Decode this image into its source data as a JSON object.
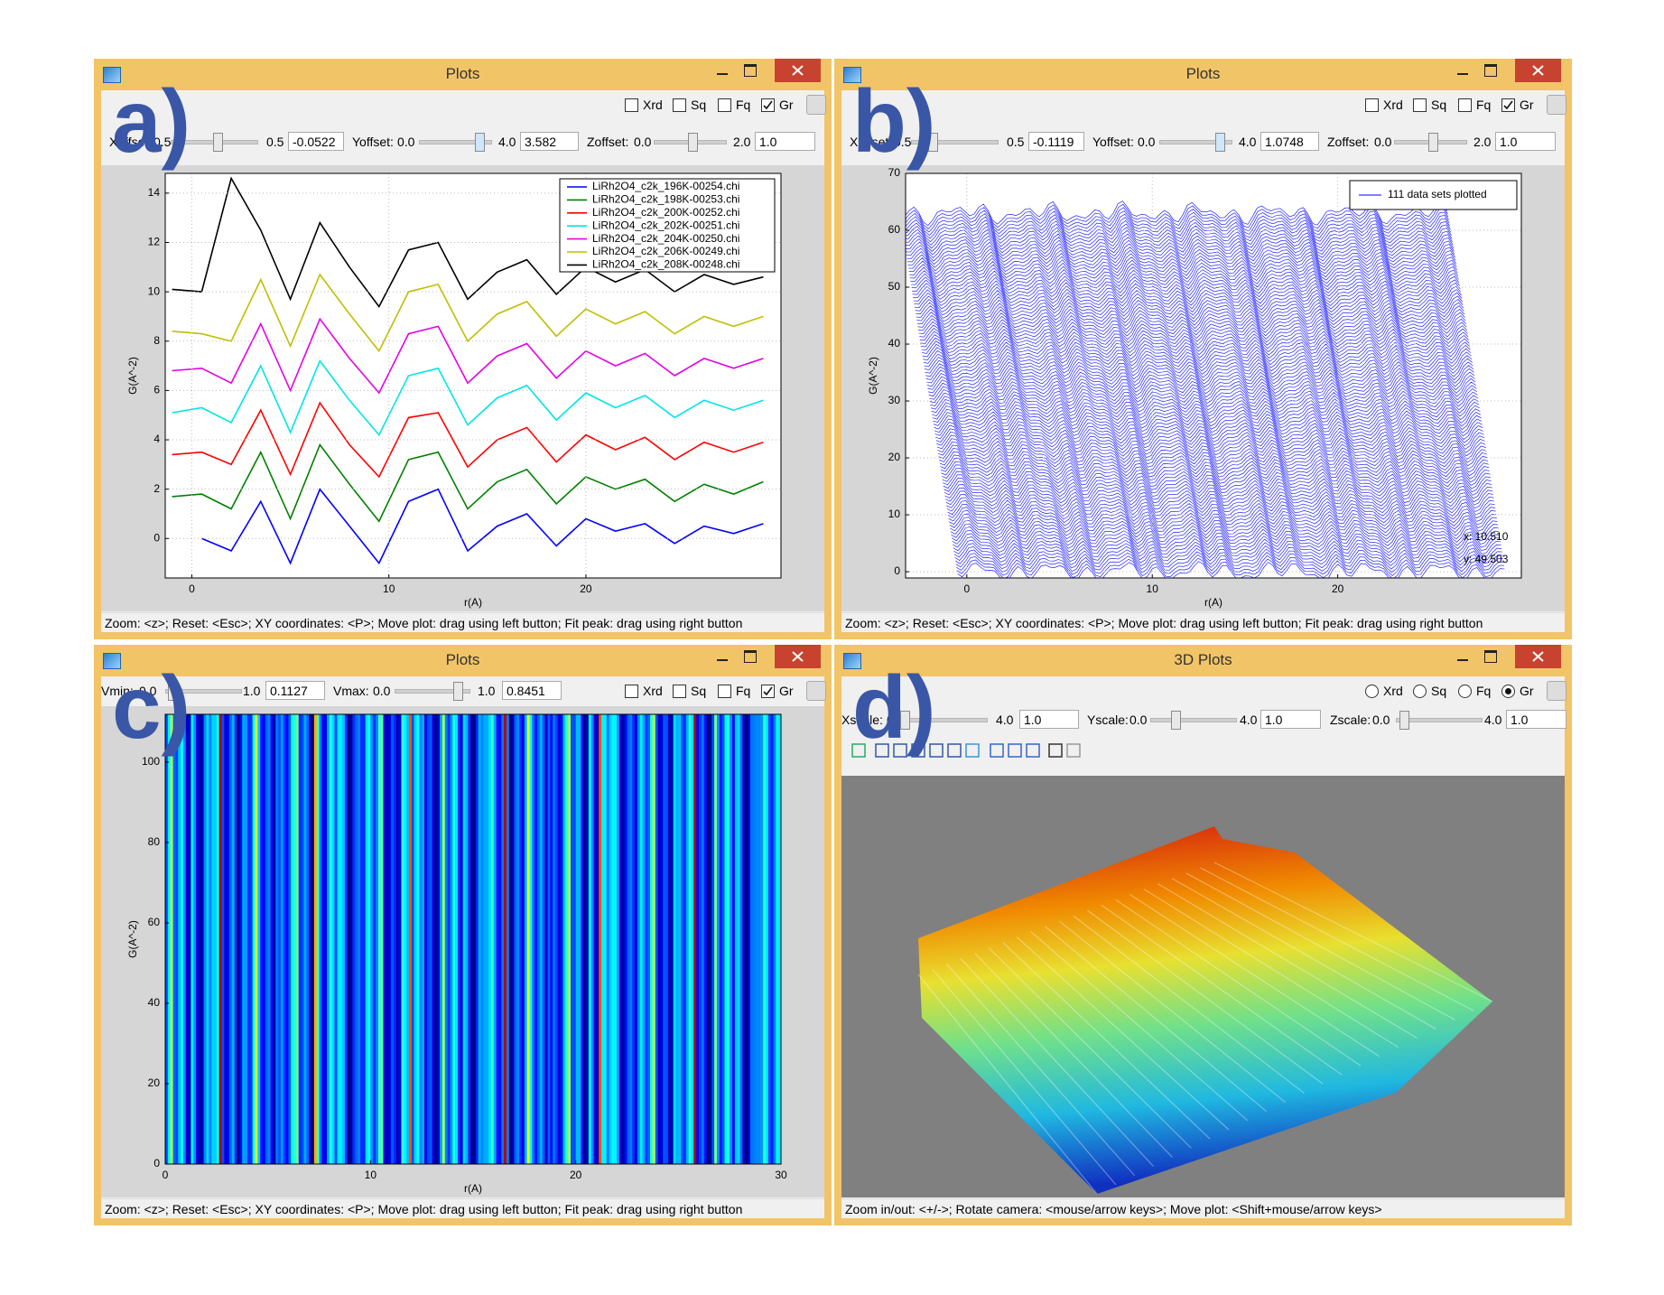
{
  "windows": [
    {
      "label": "a)",
      "title": "Plots",
      "option_style": "checkbox",
      "options": [
        {
          "label": "Xrd",
          "checked": false
        },
        {
          "label": "Sq",
          "checked": false
        },
        {
          "label": "Fq",
          "checked": false
        },
        {
          "label": "Gr",
          "checked": true
        }
      ],
      "controls": [
        {
          "name": "Xoffset:",
          "min": "0.5",
          "max": "0.5",
          "value": "-0.0522"
        },
        {
          "name": "Yoffset:",
          "min": "0.0",
          "max": "4.0",
          "value": "3.582"
        },
        {
          "name": "Zoffset:",
          "min": "0.0",
          "max": "2.0",
          "value": "1.0"
        }
      ],
      "chart_data": {
        "type": "line",
        "x_label": "r(A)",
        "y_label": "G(A^-2)",
        "x": [
          -1,
          0.5,
          2,
          3.5,
          5,
          6.5,
          8,
          9.5,
          11,
          12.5,
          14,
          15.5,
          17,
          18.5,
          20,
          21.5,
          23,
          24.5,
          26,
          27.5,
          29
        ],
        "series": [
          {
            "name": "LiRh2O4_c2k_196K-00254.chi",
            "color": "#0000ff",
            "values": [
              null,
              0,
              -0.5,
              1.5,
              -1,
              2,
              0.5,
              -1,
              1.5,
              2,
              -0.5,
              0.5,
              1,
              -0.3,
              0.8,
              0.3,
              0.6,
              -0.2,
              0.5,
              0.2,
              0.6
            ]
          },
          {
            "name": "LiRh2O4_c2k_198K-00253.chi",
            "color": "#008000",
            "values": [
              1.7,
              1.8,
              1.2,
              3.5,
              0.8,
              3.8,
              2.2,
              0.7,
              3.2,
              3.5,
              1.2,
              2.3,
              2.8,
              1.4,
              2.5,
              2.0,
              2.4,
              1.5,
              2.2,
              1.8,
              2.3
            ]
          },
          {
            "name": "LiRh2O4_c2k_200K-00252.chi",
            "color": "#ff0000",
            "values": [
              3.4,
              3.5,
              3.0,
              5.2,
              2.6,
              5.5,
              3.8,
              2.5,
              4.9,
              5.1,
              2.9,
              4.0,
              4.5,
              3.1,
              4.2,
              3.6,
              4.1,
              3.2,
              3.9,
              3.5,
              3.9
            ]
          },
          {
            "name": "LiRh2O4_c2k_202K-00251.chi",
            "color": "#00e5e5",
            "values": [
              5.1,
              5.3,
              4.7,
              7.0,
              4.3,
              7.2,
              5.6,
              4.2,
              6.6,
              6.9,
              4.6,
              5.7,
              6.2,
              4.8,
              5.9,
              5.3,
              5.8,
              4.9,
              5.6,
              5.2,
              5.6
            ]
          },
          {
            "name": "LiRh2O4_c2k_204K-00250.chi",
            "color": "#e500e5",
            "values": [
              6.8,
              6.9,
              6.3,
              8.7,
              6.0,
              8.9,
              7.3,
              5.9,
              8.3,
              8.6,
              6.3,
              7.4,
              7.9,
              6.5,
              7.6,
              7.0,
              7.5,
              6.6,
              7.3,
              6.9,
              7.3
            ]
          },
          {
            "name": "LiRh2O4_c2k_206K-00249.chi",
            "color": "#bfbf00",
            "values": [
              8.4,
              8.3,
              8.0,
              10.5,
              7.8,
              10.7,
              9.1,
              7.6,
              10.0,
              10.3,
              8.0,
              9.1,
              9.6,
              8.2,
              9.3,
              8.7,
              9.2,
              8.3,
              9.0,
              8.6,
              9.0
            ]
          },
          {
            "name": "LiRh2O4_c2k_208K-00248.chi",
            "color": "#000000",
            "values": [
              10.1,
              10.0,
              14.6,
              12.5,
              9.7,
              12.8,
              11.0,
              9.4,
              11.7,
              12.0,
              9.7,
              10.8,
              11.3,
              9.9,
              11.0,
              10.4,
              10.9,
              10.0,
              10.7,
              10.3,
              10.6
            ]
          }
        ],
        "xlim": [
          -1.35,
          29.9
        ],
        "ylim": [
          -1.6,
          14.8
        ],
        "xticks": [
          0,
          10,
          20
        ],
        "yticks": [
          0,
          2,
          4,
          6,
          8,
          10,
          12,
          14
        ],
        "grid": true,
        "legend": "upper right"
      },
      "status": "Zoom: <z>;  Reset: <Esc>; XY coordinates: <P>; Move plot: drag using left button;  Fit peak: drag using right button"
    },
    {
      "label": "b)",
      "title": "Plots",
      "option_style": "checkbox",
      "options": [
        {
          "label": "Xrd",
          "checked": false
        },
        {
          "label": "Sq",
          "checked": false
        },
        {
          "label": "Fq",
          "checked": false
        },
        {
          "label": "Gr",
          "checked": true
        }
      ],
      "controls": [
        {
          "name": "Xoffset:",
          "min": "0.5",
          "max": "0.5",
          "value": "-0.1119"
        },
        {
          "name": "Yoffset:",
          "min": "0.0",
          "max": "4.0",
          "value": "1.0748"
        },
        {
          "name": "Zoffset:",
          "min": "0.0",
          "max": "2.0",
          "value": "1.0"
        }
      ],
      "chart_data": {
        "type": "waterfall",
        "x_label": "r(A)",
        "y_label": "G(A^-2)",
        "legend_text": "111 data sets plotted",
        "color": "#0000ff",
        "xlim": [
          -3.3,
          29.9
        ],
        "ylim": [
          -1.1,
          70
        ],
        "xticks": [
          0,
          10,
          20
        ],
        "yticks": [
          0,
          10,
          20,
          30,
          40,
          50,
          60,
          70
        ],
        "grid": true,
        "legend": "upper right",
        "cursor": {
          "x": "x: 10.510",
          "y": "y: 49.503"
        }
      },
      "status": "Zoom: <z>;  Reset: <Esc>; XY coordinates: <P>; Move plot: drag using left button;  Fit peak: drag using right button"
    },
    {
      "label": "c)",
      "title": "Plots",
      "option_style": "checkbox",
      "options": [
        {
          "label": "Xrd",
          "checked": false
        },
        {
          "label": "Sq",
          "checked": false
        },
        {
          "label": "Fq",
          "checked": false
        },
        {
          "label": "Gr",
          "checked": true
        }
      ],
      "controls": [
        {
          "name": "Vmin:",
          "min": "0.0",
          "max": "1.0",
          "value": "0.1127"
        },
        {
          "name": "Vmax:",
          "min": "0.0",
          "max": "1.0",
          "value": "0.8451"
        }
      ],
      "chart_data": {
        "type": "heatmap",
        "x_label": "r(A)",
        "y_label": "G(A^-2)",
        "xlim": [
          0,
          30
        ],
        "ylim": [
          0,
          111.9
        ],
        "xticks": [
          0,
          10,
          20,
          30
        ],
        "yticks": [
          0,
          20,
          40,
          60,
          80,
          100
        ]
      },
      "status": "Zoom: <z>;  Reset: <Esc>; XY coordinates: <P>; Move plot: drag using left button;  Fit peak: drag using right button"
    },
    {
      "label": "d)",
      "title": "3D Plots",
      "option_style": "radio",
      "options": [
        {
          "label": "Xrd",
          "checked": false
        },
        {
          "label": "Sq",
          "checked": false
        },
        {
          "label": "Fq",
          "checked": false
        },
        {
          "label": "Gr",
          "checked": true
        }
      ],
      "controls": [
        {
          "name": "Xscale:",
          "min": "0.0",
          "max": "4.0",
          "value": "1.0"
        },
        {
          "name": "Yscale:",
          "min": "0.0",
          "max": "4.0",
          "value": "1.0"
        },
        {
          "name": "Zscale:",
          "min": "0.0",
          "max": "4.0",
          "value": "1.0"
        }
      ],
      "status": "Zoom in/out: <+/->;  Rotate camera: <mouse/arrow keys>;  Move plot: <Shift+mouse/arrow keys>"
    }
  ]
}
